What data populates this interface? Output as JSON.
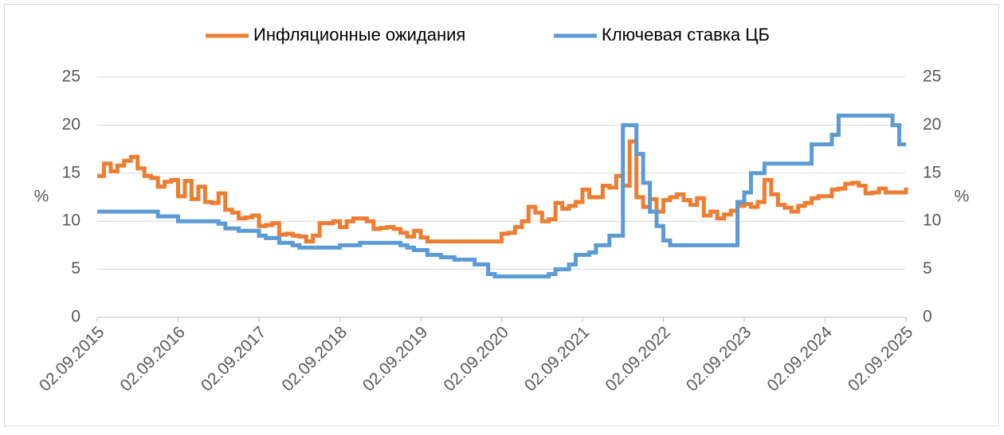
{
  "chart_data": {
    "type": "line",
    "step": true,
    "legend": "top",
    "grid": true,
    "ylabel": "%",
    "y2label": "%",
    "ylim": [
      0,
      25
    ],
    "yticks": [
      0,
      5,
      10,
      15,
      20,
      25
    ],
    "y2lim": [
      0,
      25
    ],
    "y2ticks": [
      0,
      5,
      10,
      15,
      20,
      25
    ],
    "xlim": [
      "2015-09",
      "2025-09"
    ],
    "xticks": [
      {
        "value": "2015-09",
        "label": "02.09.2015"
      },
      {
        "value": "2016-09",
        "label": "02.09.2016"
      },
      {
        "value": "2017-09",
        "label": "02.09.2017"
      },
      {
        "value": "2018-09",
        "label": "02.09.2018"
      },
      {
        "value": "2019-09",
        "label": "02.09.2019"
      },
      {
        "value": "2020-09",
        "label": "02.09.2020"
      },
      {
        "value": "2021-09",
        "label": "02.09.2021"
      },
      {
        "value": "2022-09",
        "label": "02.09.2022"
      },
      {
        "value": "2023-09",
        "label": "02.09.2023"
      },
      {
        "value": "2024-09",
        "label": "02.09.2024"
      },
      {
        "value": "2025-09",
        "label": "02.09.2025"
      }
    ],
    "x": [
      "2015-09",
      "2015-10",
      "2015-11",
      "2015-12",
      "2016-01",
      "2016-02",
      "2016-03",
      "2016-04",
      "2016-05",
      "2016-06",
      "2016-07",
      "2016-08",
      "2016-09",
      "2016-10",
      "2016-11",
      "2016-12",
      "2017-01",
      "2017-02",
      "2017-03",
      "2017-04",
      "2017-05",
      "2017-06",
      "2017-07",
      "2017-08",
      "2017-09",
      "2017-10",
      "2017-11",
      "2017-12",
      "2018-01",
      "2018-02",
      "2018-03",
      "2018-04",
      "2018-05",
      "2018-06",
      "2018-07",
      "2018-08",
      "2018-09",
      "2018-10",
      "2018-11",
      "2018-12",
      "2019-01",
      "2019-02",
      "2019-03",
      "2019-04",
      "2019-05",
      "2019-06",
      "2019-07",
      "2019-08",
      "2019-09",
      "2019-10",
      "2019-11",
      "2019-12",
      "2020-01",
      "2020-02",
      "2020-03",
      "2020-04",
      "2020-05",
      "2020-06",
      "2020-07",
      "2020-08",
      "2020-09",
      "2020-10",
      "2020-11",
      "2020-12",
      "2021-01",
      "2021-02",
      "2021-03",
      "2021-04",
      "2021-05",
      "2021-06",
      "2021-07",
      "2021-08",
      "2021-09",
      "2021-10",
      "2021-11",
      "2021-12",
      "2022-01",
      "2022-02",
      "2022-03",
      "2022-04",
      "2022-05",
      "2022-06",
      "2022-07",
      "2022-08",
      "2022-09",
      "2022-10",
      "2022-11",
      "2022-12",
      "2023-01",
      "2023-02",
      "2023-03",
      "2023-04",
      "2023-05",
      "2023-06",
      "2023-07",
      "2023-08",
      "2023-09",
      "2023-10",
      "2023-11",
      "2023-12",
      "2024-01",
      "2024-02",
      "2024-03",
      "2024-04",
      "2024-05",
      "2024-06",
      "2024-07",
      "2024-08",
      "2024-09",
      "2024-10",
      "2024-11",
      "2024-12",
      "2025-01",
      "2025-02",
      "2025-03",
      "2025-04",
      "2025-05",
      "2025-06",
      "2025-07",
      "2025-08",
      "2025-09"
    ],
    "series": [
      {
        "name": "Инфляционные ожидания",
        "color": "#ed7d31",
        "values": [
          14.7,
          16,
          15.2,
          15.8,
          16.3,
          16.7,
          15.5,
          14.7,
          14.5,
          13.6,
          14.1,
          14.3,
          12.6,
          14.2,
          12.3,
          13.6,
          12,
          11.9,
          12.9,
          11.2,
          10.9,
          10.3,
          10.4,
          10.6,
          9.5,
          9.6,
          9.8,
          8.6,
          8.7,
          8.5,
          8.4,
          7.9,
          8.5,
          9.8,
          9.8,
          10,
          9.4,
          10,
          10.3,
          10.3,
          10,
          9.2,
          9.3,
          9.4,
          9.2,
          8.8,
          8.4,
          9,
          8.3,
          7.9,
          7.9,
          7.9,
          7.9,
          7.9,
          7.9,
          7.9,
          7.9,
          7.9,
          7.9,
          7.9,
          8.7,
          8.8,
          9.4,
          10,
          11.5,
          10.9,
          10,
          10.2,
          11.9,
          11.3,
          11.6,
          12,
          13.3,
          12.5,
          12.5,
          13.7,
          13.5,
          14.7,
          13.7,
          18.3,
          12.5,
          11.5,
          12.3,
          11,
          12.2,
          12.5,
          12.8,
          12.2,
          11.7,
          12.4,
          10.6,
          11,
          10.3,
          10.7,
          11.1,
          11.6,
          11.8,
          11.5,
          12,
          14.3,
          12.8,
          11.7,
          11.4,
          11,
          11.6,
          11.9,
          12.4,
          12.6,
          12.6,
          13.3,
          13.4,
          13.9,
          14,
          13.7,
          12.9,
          13,
          13.4,
          13,
          13,
          13,
          13.5
        ]
      },
      {
        "name": "Ключевая ставка ЦБ",
        "color": "#5b9bd5",
        "values": [
          11,
          11,
          11,
          11,
          11,
          11,
          11,
          11,
          11,
          10.5,
          10.5,
          10.5,
          10,
          10,
          10,
          10,
          10,
          10,
          9.75,
          9.25,
          9.25,
          9,
          9,
          9,
          8.5,
          8.25,
          8.25,
          7.75,
          7.75,
          7.5,
          7.25,
          7.25,
          7.25,
          7.25,
          7.25,
          7.25,
          7.5,
          7.5,
          7.5,
          7.75,
          7.75,
          7.75,
          7.75,
          7.75,
          7.75,
          7.5,
          7.25,
          7,
          7,
          6.5,
          6.5,
          6.25,
          6.25,
          6,
          6,
          6,
          5.5,
          5.5,
          4.5,
          4.25,
          4.25,
          4.25,
          4.25,
          4.25,
          4.25,
          4.25,
          4.25,
          4.5,
          5,
          5,
          5.5,
          6.5,
          6.5,
          6.75,
          7.5,
          7.5,
          8.5,
          8.5,
          20,
          20,
          17,
          14,
          11,
          9.5,
          8,
          7.5,
          7.5,
          7.5,
          7.5,
          7.5,
          7.5,
          7.5,
          7.5,
          7.5,
          7.5,
          12,
          13,
          15,
          15,
          16,
          16,
          16,
          16,
          16,
          16,
          16,
          18,
          18,
          18,
          19,
          21,
          21,
          21,
          21,
          21,
          21,
          21,
          21,
          20,
          18,
          18
        ]
      }
    ]
  }
}
